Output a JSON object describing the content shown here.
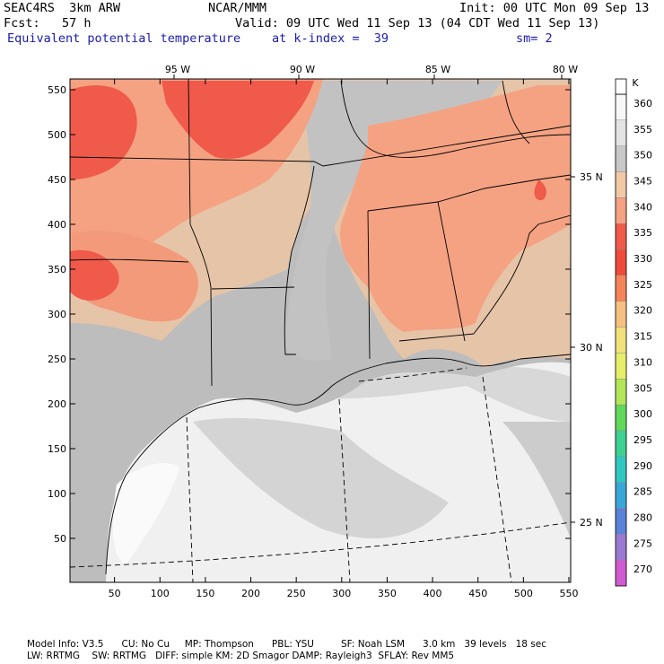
{
  "header": {
    "model": "SEAC4RS  3km ARW",
    "center": "NCAR/MMM",
    "init": "Init: 00 UTC Mon 09 Sep 13",
    "fcst": "Fcst:   57 h",
    "valid": "Valid: 09 UTC Wed 11 Sep 13 (04 CDT Wed 11 Sep 13)",
    "field": "Equivalent potential temperature",
    "level": "at k-index =  39",
    "smooth": "sm= 2"
  },
  "map": {
    "x_ticks": [
      "50",
      "100",
      "150",
      "200",
      "250",
      "300",
      "350",
      "400",
      "450",
      "500",
      "550"
    ],
    "y_ticks": [
      "50",
      "100",
      "150",
      "200",
      "250",
      "300",
      "350",
      "400",
      "450",
      "500",
      "550"
    ],
    "lon_labels": [
      "95 W",
      "90 W",
      "85 W",
      "80 W"
    ],
    "lat_labels": [
      "35 N",
      "30 N",
      "25 N"
    ]
  },
  "colorbar": {
    "unit": "K",
    "levels": [
      "360",
      "355",
      "350",
      "345",
      "340",
      "335",
      "330",
      "325",
      "320",
      "315",
      "310",
      "305",
      "300",
      "295",
      "290",
      "285",
      "280",
      "275",
      "270"
    ],
    "colors": [
      "#f7f7f7",
      "#e4e4e4",
      "#c8c8c8",
      "#f2c8a6",
      "#f4a282",
      "#ef5a4a",
      "#f04a3a",
      "#f4845a",
      "#f6c080",
      "#f2e07a",
      "#e6ee6a",
      "#b4e65a",
      "#62d85a",
      "#3ed090",
      "#2ec8c0",
      "#3aa6d8",
      "#5a82d6",
      "#9a7ad0",
      "#d05ad0"
    ]
  },
  "footer": {
    "line1": "Model Info: V3.5      CU: No Cu     MP: Thompson      PBL: YSU         SF: Noah LSM      3.0 km   39 levels   18 sec",
    "line2": "LW: RRTMG    SW: RRTMG   DIFF: simple KM: 2D Smagor DAMP: Rayleigh3  SFLAY: Rev MM5"
  }
}
